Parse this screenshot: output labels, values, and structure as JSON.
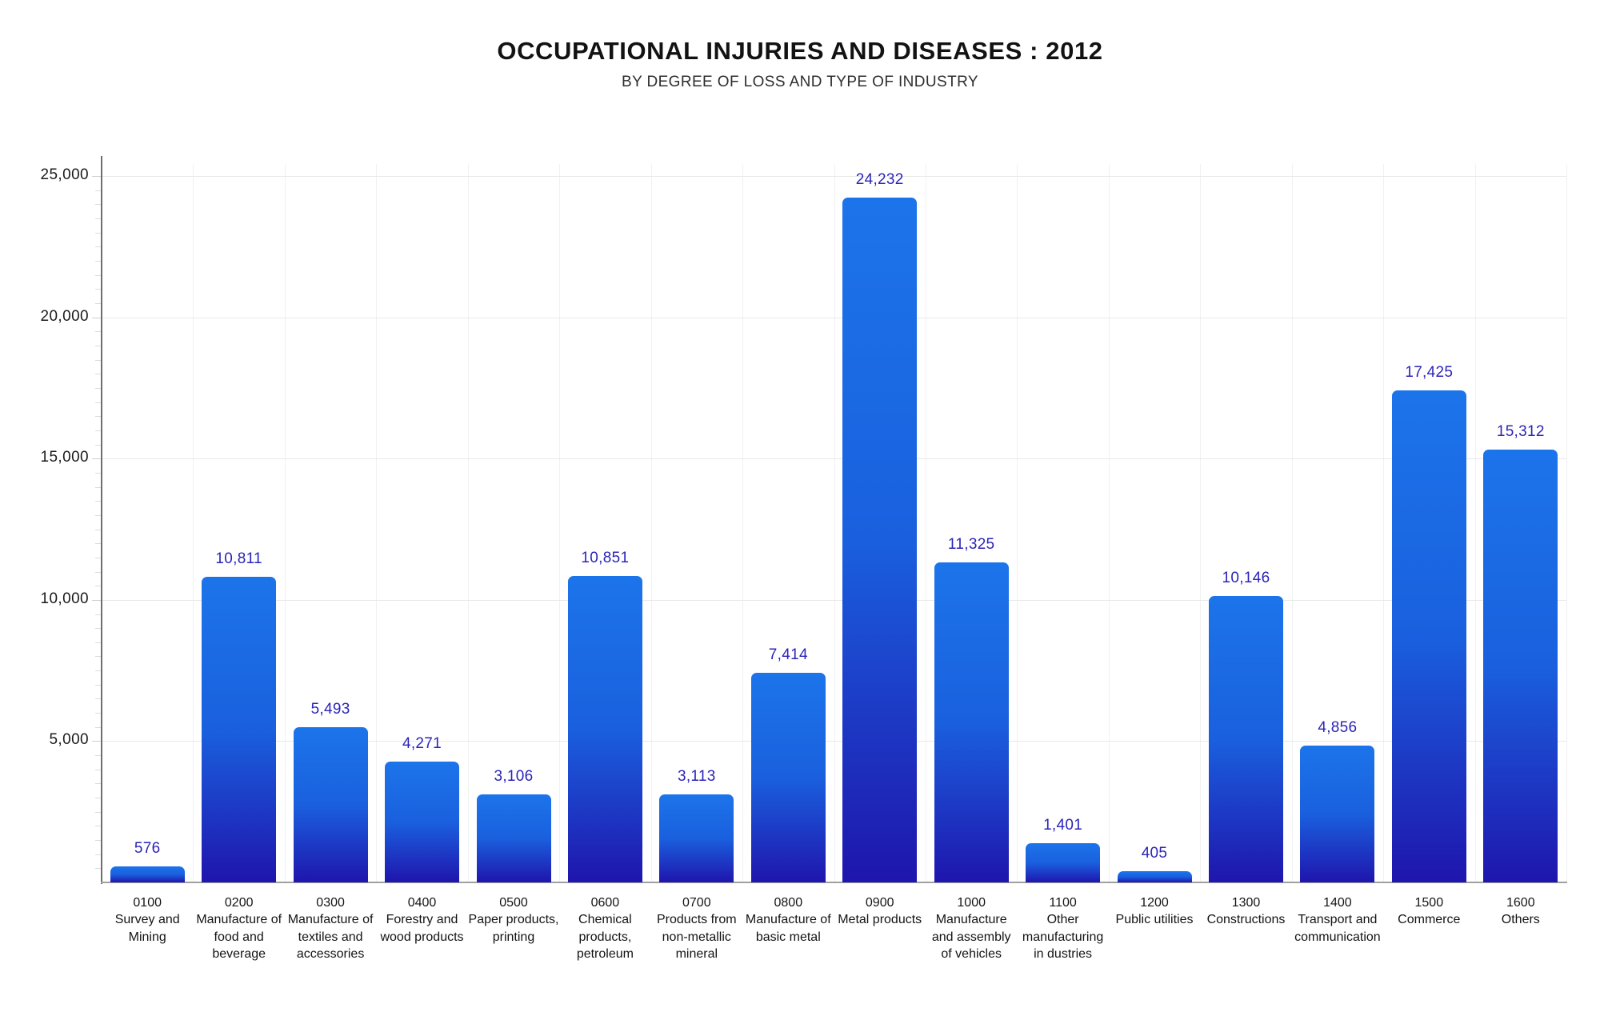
{
  "title": "OCCUPATIONAL INJURIES AND DISEASES : 2012",
  "subtitle": "BY DEGREE OF LOSS AND TYPE OF INDUSTRY",
  "chart_data": {
    "type": "bar",
    "title": "OCCUPATIONAL INJURIES AND DISEASES : 2012",
    "subtitle": "BY DEGREE OF LOSS AND TYPE OF INDUSTRY",
    "categories": [
      {
        "code": "0100",
        "name": "Survey and Mining"
      },
      {
        "code": "0200",
        "name": "Manufacture of food and beverage"
      },
      {
        "code": "0300",
        "name": "Manufacture of textiles and accessories"
      },
      {
        "code": "0400",
        "name": "Forestry and wood products"
      },
      {
        "code": "0500",
        "name": "Paper products, printing"
      },
      {
        "code": "0600",
        "name": "Chemical products, petroleum"
      },
      {
        "code": "0700",
        "name": "Products from non-metallic mineral"
      },
      {
        "code": "0800",
        "name": "Manufacture of basic metal"
      },
      {
        "code": "0900",
        "name": "Metal products"
      },
      {
        "code": "1000",
        "name": "Manufacture and assembly of vehicles"
      },
      {
        "code": "1100",
        "name": "Other manufacturing in dustries"
      },
      {
        "code": "1200",
        "name": "Public utilities"
      },
      {
        "code": "1300",
        "name": "Constructions"
      },
      {
        "code": "1400",
        "name": "Transport and communication"
      },
      {
        "code": "1500",
        "name": "Commerce"
      },
      {
        "code": "1600",
        "name": "Others"
      }
    ],
    "values": [
      576,
      10811,
      5493,
      4271,
      3106,
      10851,
      3113,
      7414,
      24232,
      11325,
      1401,
      405,
      10146,
      4856,
      17425,
      15312
    ],
    "value_labels": [
      "576",
      "10,811",
      "5,493",
      "4,271",
      "3,106",
      "10,851",
      "3,113",
      "7,414",
      "24,232",
      "11,325",
      "1,401",
      "405",
      "10,146",
      "4,856",
      "17,425",
      "15,312"
    ],
    "xlabel": "",
    "ylabel": "",
    "ylim": [
      0,
      25000
    ],
    "ytick_step": 5000,
    "ytick_minor_step": 500,
    "ytick_labels": [
      "25,000",
      "20,000",
      "15,000",
      "10,000",
      "5,000"
    ],
    "grid": true,
    "legend_position": "none",
    "colors": {
      "bar_gradient_top": "#1c74ea",
      "bar_gradient_mid": "#1a60de",
      "bar_gradient_bottom": "#1f15ad",
      "value_label": "#2b24b8",
      "title": "#121212",
      "subtitle": "#2e2e2e",
      "axis_label": "#1b1b1b",
      "gridline": "#e9e9e9",
      "background": "#ffffff"
    }
  }
}
